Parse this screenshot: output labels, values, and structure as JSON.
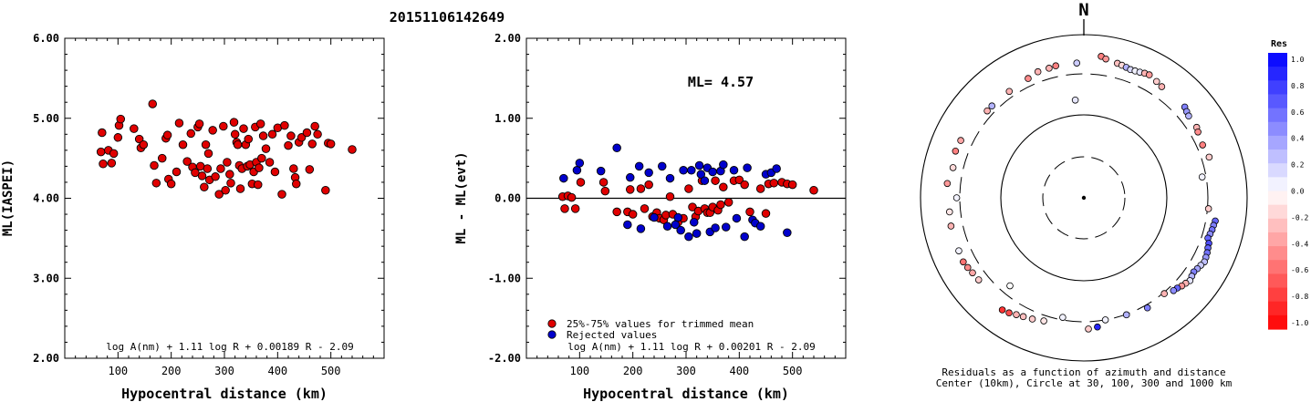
{
  "title": "20151106142649",
  "colors": {
    "red": "#e00000",
    "blue": "#0000cc"
  },
  "chart_data": [
    {
      "type": "scatter",
      "xlabel": "Hypocentral distance (km)",
      "ylabel": "ML(IASPEI)",
      "xlim": [
        0,
        600
      ],
      "ylim": [
        2.0,
        6.0
      ],
      "xticks": [
        "100",
        "200",
        "300",
        "400",
        "500"
      ],
      "yticks": [
        "2.00",
        "3.00",
        "4.00",
        "5.00",
        "6.00"
      ],
      "formula": "log A(nm) + 1.11 log R + 0.00189 R - 2.09",
      "series": [
        {
          "color": "red",
          "points": [
            [
              68,
              4.58
            ],
            [
              70,
              4.82
            ],
            [
              72,
              4.43
            ],
            [
              82,
              4.6
            ],
            [
              88,
              4.44
            ],
            [
              92,
              4.56
            ],
            [
              100,
              4.76
            ],
            [
              102,
              4.91
            ],
            [
              105,
              4.99
            ],
            [
              130,
              4.87
            ],
            [
              140,
              4.74
            ],
            [
              143,
              4.63
            ],
            [
              148,
              4.67
            ],
            [
              165,
              5.18
            ],
            [
              168,
              4.41
            ],
            [
              172,
              4.19
            ],
            [
              183,
              4.5
            ],
            [
              190,
              4.75
            ],
            [
              193,
              4.79
            ],
            [
              195,
              4.24
            ],
            [
              200,
              4.18
            ],
            [
              210,
              4.33
            ],
            [
              215,
              4.94
            ],
            [
              222,
              4.67
            ],
            [
              230,
              4.46
            ],
            [
              237,
              4.81
            ],
            [
              240,
              4.39
            ],
            [
              245,
              4.32
            ],
            [
              250,
              4.89
            ],
            [
              253,
              4.93
            ],
            [
              255,
              4.4
            ],
            [
              258,
              4.28
            ],
            [
              262,
              4.14
            ],
            [
              265,
              4.67
            ],
            [
              268,
              4.37
            ],
            [
              270,
              4.56
            ],
            [
              272,
              4.23
            ],
            [
              278,
              4.85
            ],
            [
              283,
              4.27
            ],
            [
              290,
              4.05
            ],
            [
              293,
              4.37
            ],
            [
              298,
              4.9
            ],
            [
              302,
              4.1
            ],
            [
              305,
              4.45
            ],
            [
              310,
              4.3
            ],
            [
              312,
              4.19
            ],
            [
              318,
              4.95
            ],
            [
              320,
              4.8
            ],
            [
              323,
              4.7
            ],
            [
              325,
              4.67
            ],
            [
              328,
              4.41
            ],
            [
              330,
              4.12
            ],
            [
              333,
              4.37
            ],
            [
              336,
              4.87
            ],
            [
              340,
              4.67
            ],
            [
              343,
              4.4
            ],
            [
              345,
              4.74
            ],
            [
              348,
              4.42
            ],
            [
              352,
              4.18
            ],
            [
              355,
              4.33
            ],
            [
              358,
              4.89
            ],
            [
              360,
              4.45
            ],
            [
              363,
              4.17
            ],
            [
              365,
              4.38
            ],
            [
              368,
              4.93
            ],
            [
              370,
              4.5
            ],
            [
              373,
              4.78
            ],
            [
              378,
              4.62
            ],
            [
              385,
              4.45
            ],
            [
              390,
              4.8
            ],
            [
              395,
              4.33
            ],
            [
              400,
              4.88
            ],
            [
              408,
              4.05
            ],
            [
              413,
              4.91
            ],
            [
              420,
              4.66
            ],
            [
              425,
              4.78
            ],
            [
              430,
              4.37
            ],
            [
              433,
              4.26
            ],
            [
              435,
              4.18
            ],
            [
              440,
              4.7
            ],
            [
              445,
              4.76
            ],
            [
              455,
              4.82
            ],
            [
              460,
              4.36
            ],
            [
              465,
              4.68
            ],
            [
              470,
              4.9
            ],
            [
              475,
              4.8
            ],
            [
              490,
              4.1
            ],
            [
              495,
              4.69
            ],
            [
              500,
              4.68
            ],
            [
              540,
              4.61
            ]
          ]
        }
      ]
    },
    {
      "type": "scatter",
      "xlabel": "Hypocentral distance (km)",
      "ylabel": "ML - ML(evt)",
      "xlim": [
        0,
        600
      ],
      "ylim": [
        -2.0,
        2.0
      ],
      "xticks": [
        "100",
        "200",
        "300",
        "400",
        "500"
      ],
      "yticks": [
        "-2.00",
        "-1.00",
        "0.00",
        "1.00",
        "2.00"
      ],
      "annotation": "ML= 4.57",
      "legend": [
        "25%-75% values for trimmed mean",
        "Rejected values"
      ],
      "formula": "log A(nm) + 1.11 log R + 0.00201 R - 2.09",
      "series": [
        {
          "name": "25%-75% values for trimmed mean",
          "color": "red",
          "points": [
            [
              68,
              0.02
            ],
            [
              72,
              -0.13
            ],
            [
              78,
              0.03
            ],
            [
              85,
              0.01
            ],
            [
              92,
              -0.13
            ],
            [
              102,
              0.2
            ],
            [
              145,
              0.2
            ],
            [
              148,
              0.09
            ],
            [
              170,
              -0.17
            ],
            [
              190,
              -0.17
            ],
            [
              195,
              0.11
            ],
            [
              200,
              -0.2
            ],
            [
              215,
              0.12
            ],
            [
              222,
              -0.13
            ],
            [
              230,
              0.17
            ],
            [
              237,
              -0.23
            ],
            [
              245,
              -0.18
            ],
            [
              250,
              -0.25
            ],
            [
              258,
              -0.27
            ],
            [
              262,
              -0.21
            ],
            [
              270,
              0.02
            ],
            [
              275,
              -0.2
            ],
            [
              285,
              -0.3
            ],
            [
              295,
              -0.25
            ],
            [
              305,
              0.12
            ],
            [
              312,
              -0.11
            ],
            [
              318,
              -0.23
            ],
            [
              323,
              -0.16
            ],
            [
              330,
              0.22
            ],
            [
              335,
              -0.13
            ],
            [
              340,
              -0.18
            ],
            [
              345,
              -0.18
            ],
            [
              350,
              -0.11
            ],
            [
              355,
              0.22
            ],
            [
              360,
              -0.15
            ],
            [
              365,
              -0.08
            ],
            [
              370,
              0.14
            ],
            [
              380,
              -0.05
            ],
            [
              390,
              0.22
            ],
            [
              400,
              0.23
            ],
            [
              410,
              0.17
            ],
            [
              420,
              -0.17
            ],
            [
              440,
              0.12
            ],
            [
              450,
              -0.19
            ],
            [
              455,
              0.18
            ],
            [
              465,
              0.19
            ],
            [
              480,
              0.2
            ],
            [
              490,
              0.18
            ],
            [
              500,
              0.17
            ],
            [
              540,
              0.1
            ]
          ]
        },
        {
          "name": "Rejected values",
          "color": "blue",
          "points": [
            [
              70,
              0.25
            ],
            [
              95,
              0.35
            ],
            [
              100,
              0.44
            ],
            [
              140,
              0.34
            ],
            [
              170,
              0.63
            ],
            [
              190,
              -0.33
            ],
            [
              195,
              0.26
            ],
            [
              212,
              0.4
            ],
            [
              215,
              -0.38
            ],
            [
              230,
              0.32
            ],
            [
              240,
              -0.24
            ],
            [
              255,
              0.4
            ],
            [
              265,
              -0.35
            ],
            [
              270,
              0.25
            ],
            [
              280,
              -0.33
            ],
            [
              285,
              -0.24
            ],
            [
              290,
              -0.4
            ],
            [
              295,
              0.35
            ],
            [
              305,
              -0.48
            ],
            [
              310,
              0.35
            ],
            [
              315,
              -0.3
            ],
            [
              320,
              -0.44
            ],
            [
              325,
              0.41
            ],
            [
              328,
              0.3
            ],
            [
              335,
              0.22
            ],
            [
              340,
              0.38
            ],
            [
              345,
              -0.42
            ],
            [
              350,
              0.33
            ],
            [
              355,
              -0.37
            ],
            [
              365,
              0.34
            ],
            [
              370,
              0.42
            ],
            [
              375,
              -0.36
            ],
            [
              390,
              0.35
            ],
            [
              395,
              -0.25
            ],
            [
              410,
              -0.48
            ],
            [
              415,
              0.38
            ],
            [
              425,
              -0.27
            ],
            [
              430,
              -0.31
            ],
            [
              440,
              -0.35
            ],
            [
              450,
              0.3
            ],
            [
              460,
              0.32
            ],
            [
              470,
              0.37
            ],
            [
              490,
              -0.43
            ]
          ]
        }
      ]
    },
    {
      "type": "polar-scatter",
      "north_label": "N",
      "caption": [
        "Residuals as a function of azimuth and distance",
        "Center (10km), Circle at 30, 100, 300 and 1000 km"
      ],
      "rings_km": [
        30,
        100,
        300,
        1000
      ],
      "colorbar": {
        "title": "Res",
        "ticks": [
          "1.0",
          "0.8",
          "0.6",
          "0.4",
          "0.2",
          "0.0",
          "-0.2",
          "-0.4",
          "-0.6",
          "-0.8",
          "-1.0"
        ],
        "range": [
          -1.0,
          1.0
        ]
      },
      "stations": [
        [
          7,
          530,
          -0.5
        ],
        [
          9,
          500,
          -0.4
        ],
        [
          14,
          470,
          -0.25
        ],
        [
          16,
          460,
          -0.15
        ],
        [
          18,
          450,
          0.3
        ],
        [
          20,
          440,
          0.15
        ],
        [
          22,
          445,
          0.05
        ],
        [
          24,
          455,
          0.1
        ],
        [
          26,
          470,
          -0.3
        ],
        [
          28,
          480,
          -0.4
        ],
        [
          32,
          450,
          -0.2
        ],
        [
          35,
          430,
          -0.3
        ],
        [
          48,
          430,
          0.5
        ],
        [
          50,
          410,
          0.4
        ],
        [
          52,
          395,
          0.3
        ],
        [
          58,
          395,
          -0.3
        ],
        [
          60,
          380,
          -0.45
        ],
        [
          66,
          360,
          -0.5
        ],
        [
          72,
          380,
          -0.2
        ],
        [
          80,
          270,
          0.05
        ],
        [
          95,
          310,
          -0.2
        ],
        [
          100,
          400,
          0.6
        ],
        [
          102,
          390,
          0.5
        ],
        [
          104,
          385,
          0.55
        ],
        [
          106,
          375,
          0.45
        ],
        [
          108,
          365,
          0.6
        ],
        [
          110,
          395,
          0.7
        ],
        [
          112,
          405,
          0.6
        ],
        [
          114,
          420,
          0.55
        ],
        [
          116,
          430,
          0.4
        ],
        [
          118,
          440,
          0.25
        ],
        [
          120,
          420,
          0.2
        ],
        [
          122,
          405,
          0.35
        ],
        [
          124,
          390,
          0.5
        ],
        [
          126,
          400,
          0.3
        ],
        [
          128,
          415,
          0.1
        ],
        [
          130,
          395,
          -0.3
        ],
        [
          132,
          380,
          -0.4
        ],
        [
          134,
          360,
          0.6
        ],
        [
          136,
          350,
          0.45
        ],
        [
          140,
          310,
          -0.3
        ],
        [
          150,
          330,
          0.5
        ],
        [
          160,
          305,
          0.3
        ],
        [
          170,
          300,
          0.05
        ],
        [
          174,
          360,
          0.85
        ],
        [
          178,
          375,
          -0.2
        ],
        [
          190,
          280,
          0.05
        ],
        [
          198,
          355,
          -0.1
        ],
        [
          203,
          380,
          -0.2
        ],
        [
          207,
          400,
          -0.25
        ],
        [
          210,
          420,
          -0.3
        ],
        [
          213,
          450,
          -0.7
        ],
        [
          216,
          470,
          -0.8
        ],
        [
          220,
          235,
          0.0
        ],
        [
          232,
          400,
          -0.2
        ],
        [
          236,
          410,
          -0.35
        ],
        [
          239,
          425,
          -0.45
        ],
        [
          242,
          440,
          -0.55
        ],
        [
          247,
          430,
          0.05
        ],
        [
          258,
          430,
          -0.3
        ],
        [
          264,
          420,
          -0.1
        ],
        [
          270,
          330,
          0.05
        ],
        [
          276,
          450,
          -0.4
        ],
        [
          283,
          410,
          -0.15
        ],
        [
          290,
          440,
          -0.5
        ],
        [
          295,
          430,
          -0.35
        ],
        [
          312,
          360,
          -0.3
        ],
        [
          315,
          360,
          0.3
        ],
        [
          325,
          360,
          -0.3
        ],
        [
          335,
          380,
          -0.45
        ],
        [
          340,
          410,
          -0.3
        ],
        [
          345,
          410,
          -0.3
        ],
        [
          348,
          420,
          -0.5
        ],
        [
          355,
          150,
          0.1
        ],
        [
          357,
          420,
          0.2
        ]
      ]
    }
  ]
}
